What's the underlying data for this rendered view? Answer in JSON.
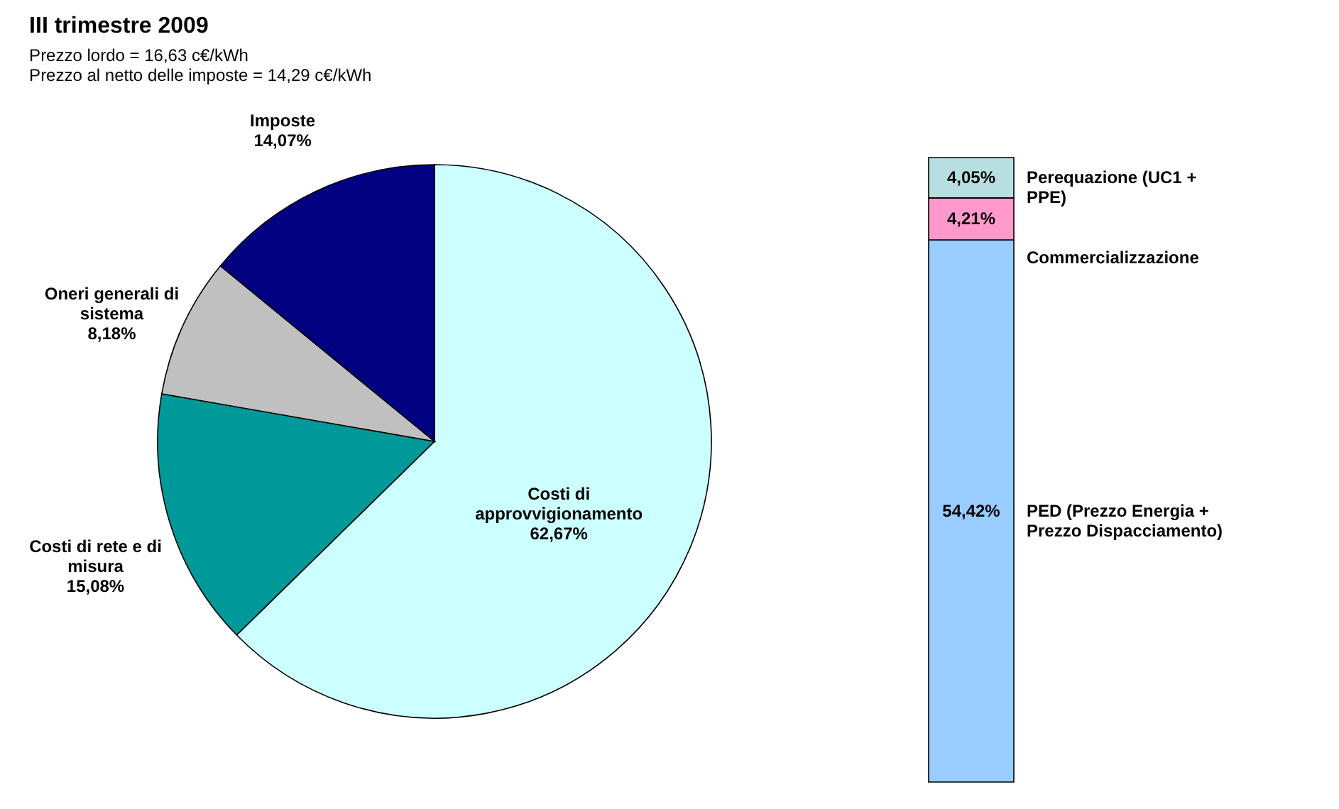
{
  "chart_data": [
    {
      "type": "pie",
      "title": "III trimestre 2009",
      "subtitle": "Prezzo lordo = 16,63 c€/kWh",
      "annotations": [
        "Prezzo al netto delle imposte = 14,29 c€/kWh"
      ],
      "categories": [
        "Costi di approvvigionamento",
        "Costi di rete e di misura",
        "Oneri generali di sistema",
        "Imposte"
      ],
      "values": [
        62.67,
        15.08,
        8.18,
        14.07
      ],
      "colors": [
        "#ccffff",
        "#009999",
        "#c0c0c0",
        "#000080"
      ],
      "value_labels": [
        "62,67%",
        "15,08%",
        "8,18%",
        "14,07%"
      ],
      "legend": false
    },
    {
      "type": "bar",
      "stacked": true,
      "categories": [
        null
      ],
      "series": [
        {
          "name": "PED (Prezzo Energia + Prezzo Dispacciamento)",
          "color": "#99ccff",
          "values": [
            54.42
          ],
          "value_labels": [
            "54,42%"
          ]
        },
        {
          "name": "Commercializzazione",
          "color": "#ff99cc",
          "values": [
            4.21
          ],
          "value_labels": [
            "4,21%"
          ]
        },
        {
          "name": "Perequazione (UC1 + PPE)",
          "color": "#b7dee0",
          "values": [
            4.05
          ],
          "value_labels": [
            "4,05%"
          ]
        }
      ],
      "legend": false
    }
  ]
}
